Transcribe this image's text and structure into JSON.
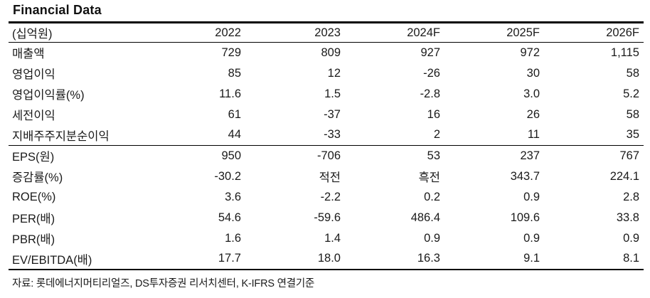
{
  "title": "Financial Data",
  "table": {
    "unit_label": "(십억원)",
    "columns": [
      "2022",
      "2023",
      "2024F",
      "2025F",
      "2026F"
    ],
    "section_break_after": 4,
    "rows": [
      {
        "label": "매출액",
        "values": [
          "729",
          "809",
          "927",
          "972",
          "1,115"
        ]
      },
      {
        "label": "영업이익",
        "values": [
          "85",
          "12",
          "-26",
          "30",
          "58"
        ]
      },
      {
        "label": "영업이익률(%)",
        "values": [
          "11.6",
          "1.5",
          "-2.8",
          "3.0",
          "5.2"
        ]
      },
      {
        "label": "세전이익",
        "values": [
          "61",
          "-37",
          "16",
          "26",
          "58"
        ]
      },
      {
        "label": "지배주주지분순이익",
        "values": [
          "44",
          "-33",
          "2",
          "11",
          "35"
        ]
      },
      {
        "label": "EPS(원)",
        "values": [
          "950",
          "-706",
          "53",
          "237",
          "767"
        ]
      },
      {
        "label": "증감률(%)",
        "values": [
          "-30.2",
          "적전",
          "흑전",
          "343.7",
          "224.1"
        ]
      },
      {
        "label": "ROE(%)",
        "values": [
          "3.6",
          "-2.2",
          "0.2",
          "0.9",
          "2.8"
        ]
      },
      {
        "label": "PER(배)",
        "values": [
          "54.6",
          "-59.6",
          "486.4",
          "109.6",
          "33.8"
        ]
      },
      {
        "label": "PBR(배)",
        "values": [
          "1.6",
          "1.4",
          "0.9",
          "0.9",
          "0.9"
        ]
      },
      {
        "label": "EV/EBITDA(배)",
        "values": [
          "17.7",
          "18.0",
          "16.3",
          "9.1",
          "8.1"
        ]
      }
    ]
  },
  "footer": {
    "source_text": "자료: 롯데에너지머티리얼즈, DS투자증권 리서치센터, K-IFRS 연결기준"
  },
  "colors": {
    "text": "#1a1a1a",
    "rule": "#000000",
    "background": "#ffffff"
  }
}
